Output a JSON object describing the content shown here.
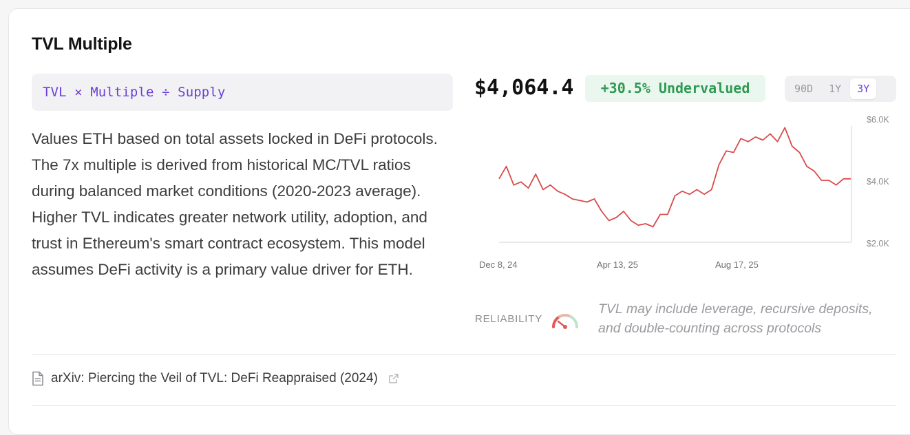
{
  "card": {
    "title": "TVL Multiple",
    "formula": "TVL × Multiple ÷ Supply",
    "description": "Values ETH based on total assets locked in DeFi protocols. The 7x multiple is derived from historical MC/TVL ratios during balanced market conditions (2020-2023 average). Higher TVL indicates greater network utility, adoption, and trust in Ethereum's smart contract ecosystem. This model assumes DeFi activity is a primary value driver for ETH."
  },
  "valuation": {
    "price": "$4,064.4",
    "badge": "+30.5% Undervalued",
    "ranges": [
      "90D",
      "1Y",
      "3Y"
    ],
    "active_range": "3Y"
  },
  "reliability": {
    "label": "RELIABILITY",
    "note": "TVL may include leverage, recursive deposits, and double-counting across protocols"
  },
  "source": {
    "text": "arXiv: Piercing the Veil of TVL: DeFi Reappraised (2024)"
  },
  "colors": {
    "accent": "#6a3fd8",
    "positive": "#2f9a53",
    "line": "#d94a4a"
  },
  "chart_data": {
    "type": "line",
    "x_tick_labels": [
      "Dec 8, 24",
      "Apr 13, 25",
      "Aug 17, 25"
    ],
    "y_tick_labels": [
      "$6.0K",
      "$4.0K",
      "$2.0K"
    ],
    "ylim": [
      2000,
      6000
    ],
    "series": [
      {
        "values": [
          4050,
          4450,
          3850,
          3950,
          3750,
          4200,
          3700,
          3850,
          3650,
          3550,
          3400,
          3350,
          3300,
          3400,
          3000,
          2700,
          2800,
          3000,
          2700,
          2550,
          2600,
          2500,
          2900,
          2900,
          3500,
          3650,
          3550,
          3700,
          3550,
          3700,
          4500,
          4950,
          4900,
          5350,
          5250,
          5400,
          5300,
          5500,
          5250,
          5700,
          5100,
          4900,
          4450,
          4300,
          4000,
          4000,
          3850,
          4050,
          4050
        ]
      }
    ]
  }
}
